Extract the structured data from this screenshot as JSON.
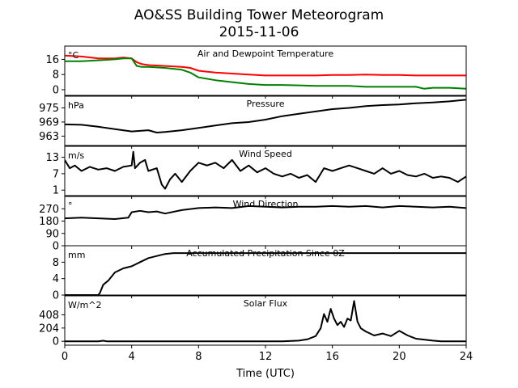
{
  "title": {
    "line1": "AO&SS Building Tower Meteorogram",
    "line2": "2015-11-06"
  },
  "chart_data": [
    {
      "type": "line",
      "title": "Air and Dewpoint Temperature",
      "unit": "°C",
      "ylim": [
        -3,
        23
      ],
      "yticks": [
        0,
        8,
        16
      ],
      "series": [
        {
          "color": "#ff0000",
          "x": [
            0,
            1,
            2,
            3,
            3.5,
            4,
            4.3,
            4.6,
            5,
            6,
            7,
            7.5,
            8,
            9,
            10,
            11,
            12,
            13,
            14,
            15,
            16,
            17,
            18,
            19,
            20,
            21,
            22,
            23,
            24
          ],
          "y": [
            18,
            17.5,
            16.5,
            16.5,
            17,
            16.5,
            14.5,
            13.5,
            13,
            12.5,
            12,
            11.5,
            10,
            9,
            8.5,
            8,
            7.5,
            7.5,
            7.5,
            7.5,
            7.8,
            7.8,
            8,
            7.8,
            7.8,
            7.5,
            7.5,
            7.5,
            7.5
          ]
        },
        {
          "color": "#008000",
          "x": [
            0,
            1,
            2,
            3,
            3.5,
            4,
            4.3,
            4.6,
            5,
            6,
            7,
            7.5,
            8,
            9,
            10,
            11,
            12,
            13,
            14,
            15,
            16,
            17,
            18,
            19,
            20,
            21,
            21.5,
            22,
            23,
            24
          ],
          "y": [
            15,
            15,
            15.5,
            16,
            16.5,
            16.5,
            12.5,
            12,
            12,
            11.5,
            10.5,
            9,
            6.5,
            5,
            4,
            3,
            2.5,
            2.5,
            2.3,
            2,
            2,
            2,
            1.5,
            1.5,
            1.5,
            1.5,
            0.5,
            1,
            1,
            0.5
          ]
        }
      ],
      "xlim": [
        0,
        24
      ]
    },
    {
      "type": "line",
      "title": "Pressure",
      "unit": "hPa",
      "ylim": [
        959,
        980
      ],
      "yticks": [
        963,
        969,
        975
      ],
      "series": [
        {
          "color": "#000000",
          "x": [
            0,
            1,
            2,
            3,
            4,
            5,
            5.5,
            6,
            7,
            8,
            9,
            10,
            11,
            12,
            13,
            14,
            15,
            16,
            17,
            18,
            19,
            20,
            21,
            22,
            23,
            24
          ],
          "y": [
            968,
            967.8,
            967,
            966,
            965,
            965.5,
            964.5,
            964.8,
            965.5,
            966.5,
            967.5,
            968.5,
            969,
            970,
            971.5,
            972.5,
            973.5,
            974.5,
            975,
            975.8,
            976.2,
            976.5,
            977,
            977.3,
            977.8,
            978.5
          ]
        }
      ],
      "xlim": [
        0,
        24
      ]
    },
    {
      "type": "line",
      "title": "Wind Speed",
      "unit": "m/s",
      "ylim": [
        -1,
        17
      ],
      "yticks": [
        1,
        7,
        13
      ],
      "series": [
        {
          "color": "#000000",
          "x": [
            0,
            0.3,
            0.6,
            1,
            1.5,
            2,
            2.5,
            3,
            3.5,
            4,
            4.1,
            4.2,
            4.5,
            4.8,
            5,
            5.5,
            5.8,
            6,
            6.3,
            6.6,
            7,
            7.5,
            8,
            8.5,
            9,
            9.5,
            10,
            10.5,
            11,
            11.5,
            12,
            12.5,
            13,
            13.5,
            14,
            14.5,
            15,
            15.5,
            16,
            16.5,
            17,
            17.5,
            18,
            18.5,
            19,
            19.5,
            20,
            20.5,
            21,
            21.5,
            22,
            22.5,
            23,
            23.5,
            24
          ],
          "y": [
            12,
            9,
            10,
            8,
            9.5,
            8.5,
            9,
            8,
            9.5,
            10,
            15,
            9,
            11,
            12,
            8,
            9,
            3,
            1.5,
            5,
            7,
            4,
            8,
            11,
            10,
            11,
            9,
            12,
            8,
            10,
            7.5,
            9,
            7,
            6,
            7,
            5.5,
            6.5,
            4,
            9,
            8,
            9,
            10,
            9,
            8,
            7,
            9,
            7,
            8,
            6.5,
            6,
            7,
            5.5,
            6,
            5.5,
            4,
            6
          ]
        }
      ],
      "xlim": [
        0,
        24
      ]
    },
    {
      "type": "line",
      "title": "Wind Direction",
      "unit": "°",
      "ylim": [
        0,
        360
      ],
      "yticks": [
        0,
        90,
        180,
        270
      ],
      "series": [
        {
          "color": "#000000",
          "x": [
            0,
            1,
            2,
            3,
            3.8,
            4,
            4.5,
            5,
            5.5,
            6,
            7,
            8,
            9,
            10,
            11,
            12,
            13,
            14,
            15,
            16,
            17,
            18,
            19,
            20,
            21,
            22,
            23,
            24
          ],
          "y": [
            200,
            205,
            200,
            195,
            205,
            245,
            255,
            245,
            250,
            235,
            260,
            275,
            280,
            275,
            290,
            285,
            280,
            285,
            285,
            290,
            285,
            290,
            280,
            290,
            285,
            280,
            285,
            275
          ]
        }
      ],
      "xlim": [
        0,
        24
      ]
    },
    {
      "type": "line",
      "title": "Accumulated Precipitation Since 0Z",
      "unit": "mm",
      "ylim": [
        0,
        12
      ],
      "yticks": [
        0,
        4,
        8
      ],
      "series": [
        {
          "color": "#000000",
          "x": [
            0,
            1,
            2,
            2.1,
            2.3,
            2.6,
            3,
            3.5,
            4,
            4.5,
            5,
            5.5,
            6,
            6.5,
            24
          ],
          "y": [
            0,
            0,
            0,
            0.5,
            2.5,
            3.5,
            5.5,
            6.5,
            7,
            8,
            9,
            9.5,
            10,
            10.2,
            10.2
          ]
        }
      ],
      "xlim": [
        0,
        24
      ]
    },
    {
      "type": "line",
      "title": "Solar Flux",
      "unit": "W/m^2",
      "ylim": [
        -60,
        700
      ],
      "yticks": [
        0,
        204,
        408
      ],
      "series": [
        {
          "color": "#000000",
          "x": [
            0,
            2,
            2.3,
            2.5,
            13,
            14,
            14.5,
            15,
            15.3,
            15.5,
            15.7,
            15.9,
            16.1,
            16.3,
            16.5,
            16.7,
            16.9,
            17.1,
            17.3,
            17.5,
            17.7,
            18,
            18.5,
            19,
            19.5,
            20,
            20.5,
            21,
            22,
            22.5,
            24
          ],
          "y": [
            0,
            0,
            8,
            0,
            0,
            10,
            30,
            80,
            200,
            420,
            300,
            500,
            350,
            250,
            300,
            220,
            350,
            320,
            620,
            300,
            200,
            150,
            90,
            120,
            80,
            160,
            90,
            40,
            10,
            0,
            0
          ]
        }
      ],
      "xlim": [
        0,
        24
      ]
    }
  ],
  "xaxis": {
    "label": "Time (UTC)",
    "ticks": [
      0,
      4,
      8,
      12,
      16,
      20,
      24
    ]
  }
}
